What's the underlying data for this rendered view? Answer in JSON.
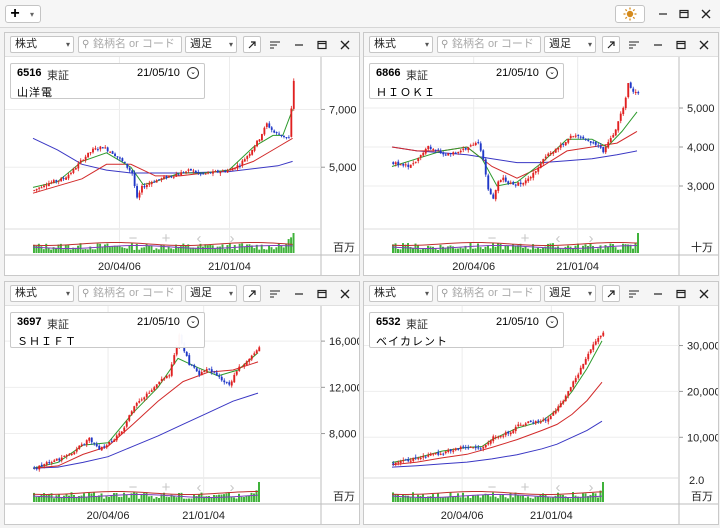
{
  "toolbar": {
    "add_icon": "plus-icon",
    "theme_icon": "sun-icon",
    "window_buttons": [
      "minimize-icon",
      "maximize-icon",
      "close-icon"
    ]
  },
  "panel_controls": {
    "market": "株式",
    "search_placeholder": "銘柄名 or コード",
    "period": "週足",
    "icons": [
      "popout-icon",
      "menu-icon",
      "minus-icon",
      "maximize-icon",
      "close-icon"
    ],
    "chart_nav_icons": [
      "minus-icon",
      "plus-icon",
      "chevron-left-icon",
      "chevron-right-icon"
    ]
  },
  "panels": [
    {
      "code": "6516",
      "exchange": "東証",
      "date": "21/05/10",
      "name": "山洋電",
      "volume_unit": "百万",
      "x_labels": [
        "20/04/06",
        "21/01/04"
      ]
    },
    {
      "code": "6866",
      "exchange": "東証",
      "date": "21/05/10",
      "name": "ＨＩＯＫＩ",
      "volume_unit": "十万",
      "x_labels": [
        "20/04/06",
        "21/01/04"
      ]
    },
    {
      "code": "3697",
      "exchange": "東証",
      "date": "21/05/10",
      "name": "ＳＨＩＦＴ",
      "volume_unit": "百万",
      "x_labels": [
        "20/04/06",
        "21/01/04"
      ]
    },
    {
      "code": "6532",
      "exchange": "東証",
      "date": "21/05/10",
      "name": "ベイカレント",
      "volume_unit": "百万",
      "volume_axis_label": "2.0",
      "x_labels": [
        "20/04/06",
        "21/01/04"
      ]
    }
  ],
  "chart_data": [
    {
      "type": "candlestick",
      "ylim": [
        3000,
        8400
      ],
      "y_ticks": [
        5000,
        7000
      ],
      "price_path": [
        [
          0,
          4200
        ],
        [
          4,
          4400
        ],
        [
          8,
          4500
        ],
        [
          12,
          4600
        ],
        [
          16,
          4900
        ],
        [
          20,
          5300
        ],
        [
          24,
          5600
        ],
        [
          28,
          5700
        ],
        [
          32,
          5500
        ],
        [
          36,
          5200
        ],
        [
          40,
          4800
        ],
        [
          42,
          3900
        ],
        [
          44,
          4300
        ],
        [
          48,
          4500
        ],
        [
          52,
          4600
        ],
        [
          56,
          4700
        ],
        [
          60,
          4800
        ],
        [
          64,
          4900
        ],
        [
          68,
          4750
        ],
        [
          72,
          4800
        ],
        [
          76,
          4850
        ],
        [
          80,
          4900
        ],
        [
          84,
          5100
        ],
        [
          88,
          5500
        ],
        [
          92,
          6000
        ],
        [
          95,
          6500
        ],
        [
          98,
          6200
        ],
        [
          101,
          6100
        ],
        [
          104,
          6000
        ],
        [
          106,
          8000
        ]
      ],
      "ma_short": [
        [
          0,
          4300
        ],
        [
          10,
          4500
        ],
        [
          20,
          5200
        ],
        [
          30,
          5500
        ],
        [
          40,
          5000
        ],
        [
          45,
          4400
        ],
        [
          50,
          4500
        ],
        [
          60,
          4800
        ],
        [
          70,
          4800
        ],
        [
          80,
          4900
        ],
        [
          90,
          5700
        ],
        [
          98,
          6100
        ],
        [
          102,
          6100
        ],
        [
          106,
          7000
        ]
      ],
      "ma_mid": [
        [
          0,
          4100
        ],
        [
          20,
          4600
        ],
        [
          30,
          5100
        ],
        [
          40,
          5100
        ],
        [
          50,
          4700
        ],
        [
          60,
          4700
        ],
        [
          80,
          4900
        ],
        [
          90,
          5200
        ],
        [
          100,
          5700
        ],
        [
          106,
          6000
        ]
      ],
      "ma_long": [
        [
          0,
          6000
        ],
        [
          10,
          5600
        ],
        [
          20,
          5100
        ],
        [
          30,
          4900
        ],
        [
          40,
          4800
        ],
        [
          60,
          4800
        ],
        [
          80,
          4850
        ],
        [
          100,
          5050
        ],
        [
          106,
          5200
        ]
      ]
    },
    {
      "type": "candlestick",
      "ylim": [
        2000,
        6000
      ],
      "y_ticks": [
        3000,
        4000,
        5000
      ],
      "price_path": [
        [
          0,
          3600
        ],
        [
          6,
          3500
        ],
        [
          10,
          3700
        ],
        [
          14,
          4000
        ],
        [
          18,
          3900
        ],
        [
          22,
          3800
        ],
        [
          26,
          3900
        ],
        [
          30,
          4000
        ],
        [
          34,
          4100
        ],
        [
          36,
          3700
        ],
        [
          38,
          2900
        ],
        [
          40,
          2700
        ],
        [
          42,
          3100
        ],
        [
          44,
          3200
        ],
        [
          48,
          3000
        ],
        [
          52,
          3100
        ],
        [
          56,
          3300
        ],
        [
          60,
          3700
        ],
        [
          64,
          3900
        ],
        [
          68,
          4100
        ],
        [
          72,
          4300
        ],
        [
          76,
          4200
        ],
        [
          80,
          4100
        ],
        [
          84,
          3900
        ],
        [
          88,
          4300
        ],
        [
          92,
          5000
        ],
        [
          94,
          5600
        ],
        [
          96,
          5400
        ],
        [
          98,
          5400
        ]
      ],
      "ma_short": [
        [
          0,
          3500
        ],
        [
          10,
          3700
        ],
        [
          20,
          3900
        ],
        [
          30,
          4000
        ],
        [
          36,
          3700
        ],
        [
          42,
          3000
        ],
        [
          50,
          3100
        ],
        [
          60,
          3600
        ],
        [
          70,
          4200
        ],
        [
          80,
          4200
        ],
        [
          86,
          4000
        ],
        [
          92,
          4400
        ],
        [
          98,
          4900
        ]
      ],
      "ma_mid": [
        [
          0,
          4000
        ],
        [
          10,
          3900
        ],
        [
          20,
          3900
        ],
        [
          30,
          4000
        ],
        [
          40,
          3500
        ],
        [
          50,
          3200
        ],
        [
          60,
          3500
        ],
        [
          70,
          3900
        ],
        [
          80,
          4000
        ],
        [
          90,
          4100
        ],
        [
          98,
          4400
        ]
      ],
      "ma_long": [
        [
          0,
          4000
        ],
        [
          10,
          3900
        ],
        [
          20,
          3850
        ],
        [
          30,
          3800
        ],
        [
          40,
          3700
        ],
        [
          50,
          3600
        ],
        [
          60,
          3600
        ],
        [
          70,
          3650
        ],
        [
          80,
          3700
        ],
        [
          90,
          3800
        ],
        [
          98,
          3900
        ]
      ]
    },
    {
      "type": "candlestick",
      "ylim": [
        4500,
        18000
      ],
      "y_ticks": [
        8000,
        12000,
        16000
      ],
      "price_path": [
        [
          0,
          5000
        ],
        [
          6,
          5500
        ],
        [
          10,
          5800
        ],
        [
          16,
          6500
        ],
        [
          22,
          7500
        ],
        [
          26,
          6700
        ],
        [
          30,
          7200
        ],
        [
          36,
          8400
        ],
        [
          40,
          10500
        ],
        [
          46,
          11500
        ],
        [
          50,
          12500
        ],
        [
          54,
          13000
        ],
        [
          58,
          16500
        ],
        [
          62,
          14000
        ],
        [
          66,
          13200
        ],
        [
          70,
          13600
        ],
        [
          74,
          12800
        ],
        [
          78,
          12300
        ],
        [
          82,
          13700
        ],
        [
          86,
          14500
        ],
        [
          90,
          15600
        ]
      ],
      "ma_short": [
        [
          0,
          5000
        ],
        [
          10,
          5500
        ],
        [
          20,
          7000
        ],
        [
          30,
          7200
        ],
        [
          40,
          9800
        ],
        [
          50,
          12000
        ],
        [
          58,
          14500
        ],
        [
          66,
          13700
        ],
        [
          74,
          13000
        ],
        [
          82,
          13500
        ],
        [
          90,
          15000
        ]
      ],
      "ma_mid": [
        [
          0,
          5000
        ],
        [
          10,
          5200
        ],
        [
          20,
          6200
        ],
        [
          30,
          6900
        ],
        [
          40,
          8800
        ],
        [
          50,
          10800
        ],
        [
          60,
          12500
        ],
        [
          70,
          13300
        ],
        [
          80,
          13500
        ],
        [
          90,
          14200
        ]
      ],
      "ma_long": [
        [
          0,
          5000
        ],
        [
          10,
          5100
        ],
        [
          20,
          5500
        ],
        [
          30,
          6000
        ],
        [
          40,
          6900
        ],
        [
          50,
          7800
        ],
        [
          60,
          8800
        ],
        [
          70,
          9800
        ],
        [
          80,
          10800
        ],
        [
          90,
          11500
        ]
      ]
    },
    {
      "type": "candlestick",
      "ylim": [
        2000,
        36000
      ],
      "y_ticks": [
        10000,
        20000,
        30000
      ],
      "price_path": [
        [
          0,
          4500
        ],
        [
          6,
          5000
        ],
        [
          10,
          5500
        ],
        [
          16,
          6300
        ],
        [
          22,
          7000
        ],
        [
          26,
          7500
        ],
        [
          30,
          8000
        ],
        [
          34,
          7600
        ],
        [
          36,
          7800
        ],
        [
          40,
          10000
        ],
        [
          46,
          11000
        ],
        [
          50,
          12500
        ],
        [
          54,
          13200
        ],
        [
          58,
          13500
        ],
        [
          62,
          14000
        ],
        [
          66,
          16500
        ],
        [
          70,
          20000
        ],
        [
          74,
          24000
        ],
        [
          76,
          26000
        ],
        [
          80,
          30000
        ],
        [
          84,
          33000
        ]
      ],
      "ma_short": [
        [
          0,
          4500
        ],
        [
          10,
          5500
        ],
        [
          20,
          7000
        ],
        [
          30,
          7800
        ],
        [
          36,
          8000
        ],
        [
          40,
          9500
        ],
        [
          50,
          12000
        ],
        [
          60,
          13500
        ],
        [
          66,
          16000
        ],
        [
          72,
          20000
        ],
        [
          78,
          25000
        ],
        [
          84,
          31000
        ]
      ],
      "ma_mid": [
        [
          0,
          4000
        ],
        [
          10,
          4600
        ],
        [
          20,
          5500
        ],
        [
          30,
          6300
        ],
        [
          40,
          7800
        ],
        [
          50,
          9500
        ],
        [
          60,
          11500
        ],
        [
          66,
          12800
        ],
        [
          72,
          15000
        ],
        [
          78,
          18000
        ],
        [
          84,
          22000
        ]
      ],
      "ma_long": [
        [
          0,
          3500
        ],
        [
          10,
          3800
        ],
        [
          20,
          4200
        ],
        [
          30,
          4600
        ],
        [
          40,
          5300
        ],
        [
          50,
          6200
        ],
        [
          60,
          7500
        ],
        [
          66,
          8500
        ],
        [
          72,
          10000
        ],
        [
          78,
          11500
        ],
        [
          84,
          13500
        ]
      ]
    }
  ]
}
